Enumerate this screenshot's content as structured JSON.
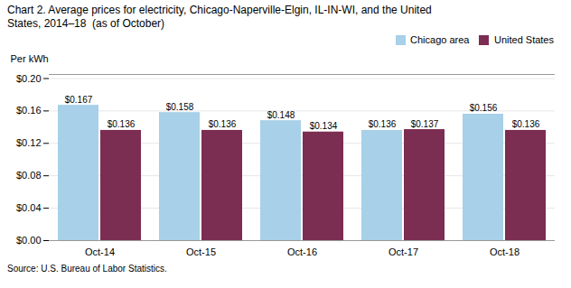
{
  "chart_data": {
    "type": "bar",
    "title": "Chart 2. Average prices for electricity, Chicago-Naperville-Elgin, IL-IN-WI, and the United\nStates, 2014–18  (as of October)",
    "ylabel": "Per kWh",
    "caption": "Source: U.S. Bureau of Labor Statistics.",
    "categories": [
      "Oct-14",
      "Oct-15",
      "Oct-16",
      "Oct-17",
      "Oct-18"
    ],
    "series": [
      {
        "name": "Chicago area",
        "color": "#A8D0E8",
        "values": [
          0.167,
          0.158,
          0.148,
          0.136,
          0.156
        ],
        "value_labels": [
          "$0.167",
          "$0.158",
          "$0.148",
          "$0.136",
          "$0.156"
        ]
      },
      {
        "name": "United States",
        "color": "#7B2D52",
        "values": [
          0.136,
          0.136,
          0.134,
          0.137,
          0.136
        ],
        "value_labels": [
          "$0.136",
          "$0.136",
          "$0.134",
          "$0.137",
          "$0.136"
        ]
      }
    ],
    "ylim": [
      0.0,
      0.205
    ],
    "yticks": [
      {
        "value": 0.0,
        "label": "$0.00"
      },
      {
        "value": 0.04,
        "label": "$0.04"
      },
      {
        "value": 0.08,
        "label": "$0.08"
      },
      {
        "value": 0.12,
        "label": "$0.12"
      },
      {
        "value": 0.16,
        "label": "$0.16"
      },
      {
        "value": 0.2,
        "label": "$0.20"
      }
    ],
    "grid": true,
    "legend": "upper right",
    "data_labels": true
  }
}
